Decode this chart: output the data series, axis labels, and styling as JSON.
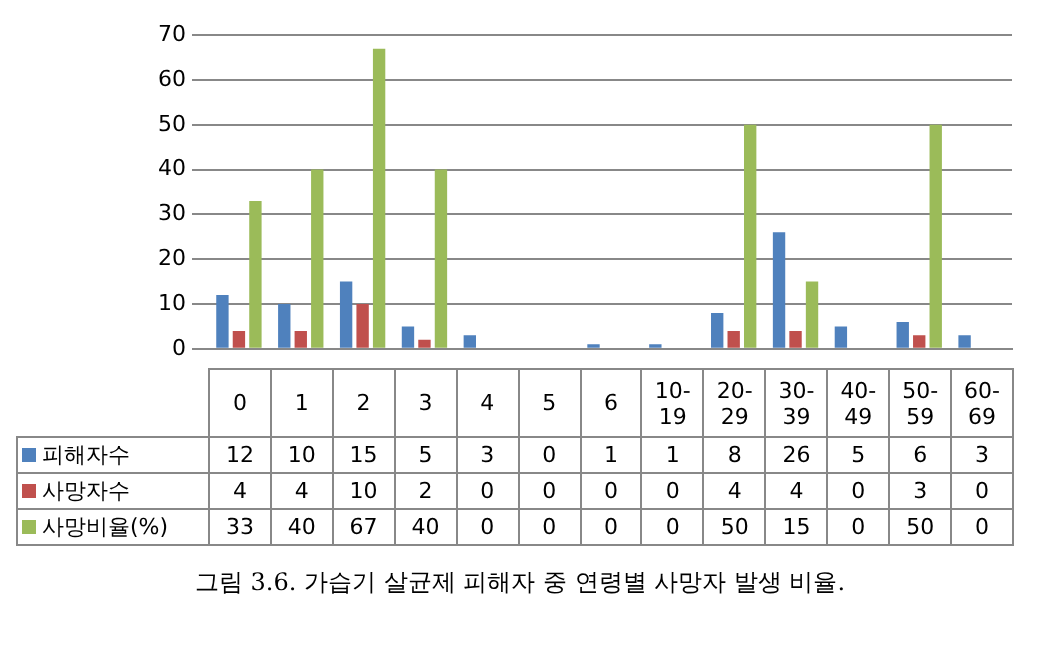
{
  "chart_data": {
    "type": "bar",
    "categories": [
      "0",
      "1",
      "2",
      "3",
      "4",
      "5",
      "6",
      "10-19",
      "20-29",
      "30-39",
      "40-49",
      "50-59",
      "60-69"
    ],
    "series": [
      {
        "name": "피해자수",
        "color": "#4f81bd",
        "values": [
          12,
          10,
          15,
          5,
          3,
          0,
          1,
          1,
          8,
          26,
          5,
          6,
          3
        ]
      },
      {
        "name": "사망자수",
        "color": "#c0504d",
        "values": [
          4,
          4,
          10,
          2,
          0,
          0,
          0,
          0,
          4,
          4,
          0,
          3,
          0
        ]
      },
      {
        "name": "사망비율(%)",
        "color": "#9bbb59",
        "values": [
          33,
          40,
          67,
          40,
          0,
          0,
          0,
          0,
          50,
          15,
          0,
          50,
          0
        ]
      }
    ],
    "ylim": [
      0,
      70
    ],
    "yticks": [
      0,
      10,
      20,
      30,
      40,
      50,
      60,
      70
    ],
    "grid": "y",
    "legend": "bottom",
    "data_labels": true,
    "annotations": [
      "그림 3.6. 가습기 살균제 피해자 중 연령별 사망자 발생 비율."
    ]
  }
}
